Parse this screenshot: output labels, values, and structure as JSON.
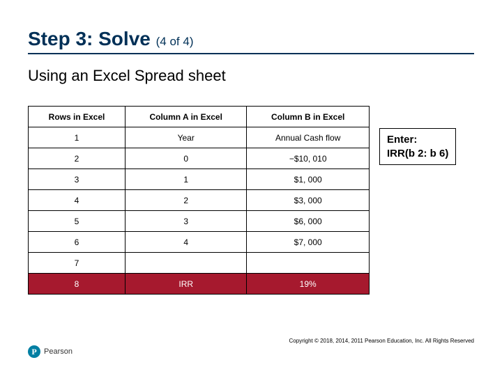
{
  "title_main": "Step 3: Solve ",
  "title_sub": "(4 of 4)",
  "subtitle": "Using an Excel Spread sheet",
  "table": {
    "headers": [
      "Rows in Excel",
      "Column A in Excel",
      "Column B in Excel"
    ],
    "rows": [
      {
        "cells": [
          "1",
          "Year",
          "Annual Cash flow"
        ],
        "highlight": false
      },
      {
        "cells": [
          "2",
          "0",
          "−$10, 010"
        ],
        "highlight": false
      },
      {
        "cells": [
          "3",
          "1",
          "$1, 000"
        ],
        "highlight": false
      },
      {
        "cells": [
          "4",
          "2",
          "$3, 000"
        ],
        "highlight": false
      },
      {
        "cells": [
          "5",
          "3",
          "$6, 000"
        ],
        "highlight": false
      },
      {
        "cells": [
          "6",
          "4",
          "$7, 000"
        ],
        "highlight": false
      },
      {
        "cells": [
          "7",
          "",
          ""
        ],
        "highlight": false
      },
      {
        "cells": [
          "8",
          "IRR",
          "19%"
        ],
        "highlight": true
      }
    ]
  },
  "callout": {
    "line1": "Enter:",
    "line2": "IRR(b 2: b 6)"
  },
  "logo_letter": "P",
  "logo_text": "Pearson",
  "copyright": "Copyright © 2018, 2014, 2011 Pearson Education, Inc. All Rights Reserved"
}
